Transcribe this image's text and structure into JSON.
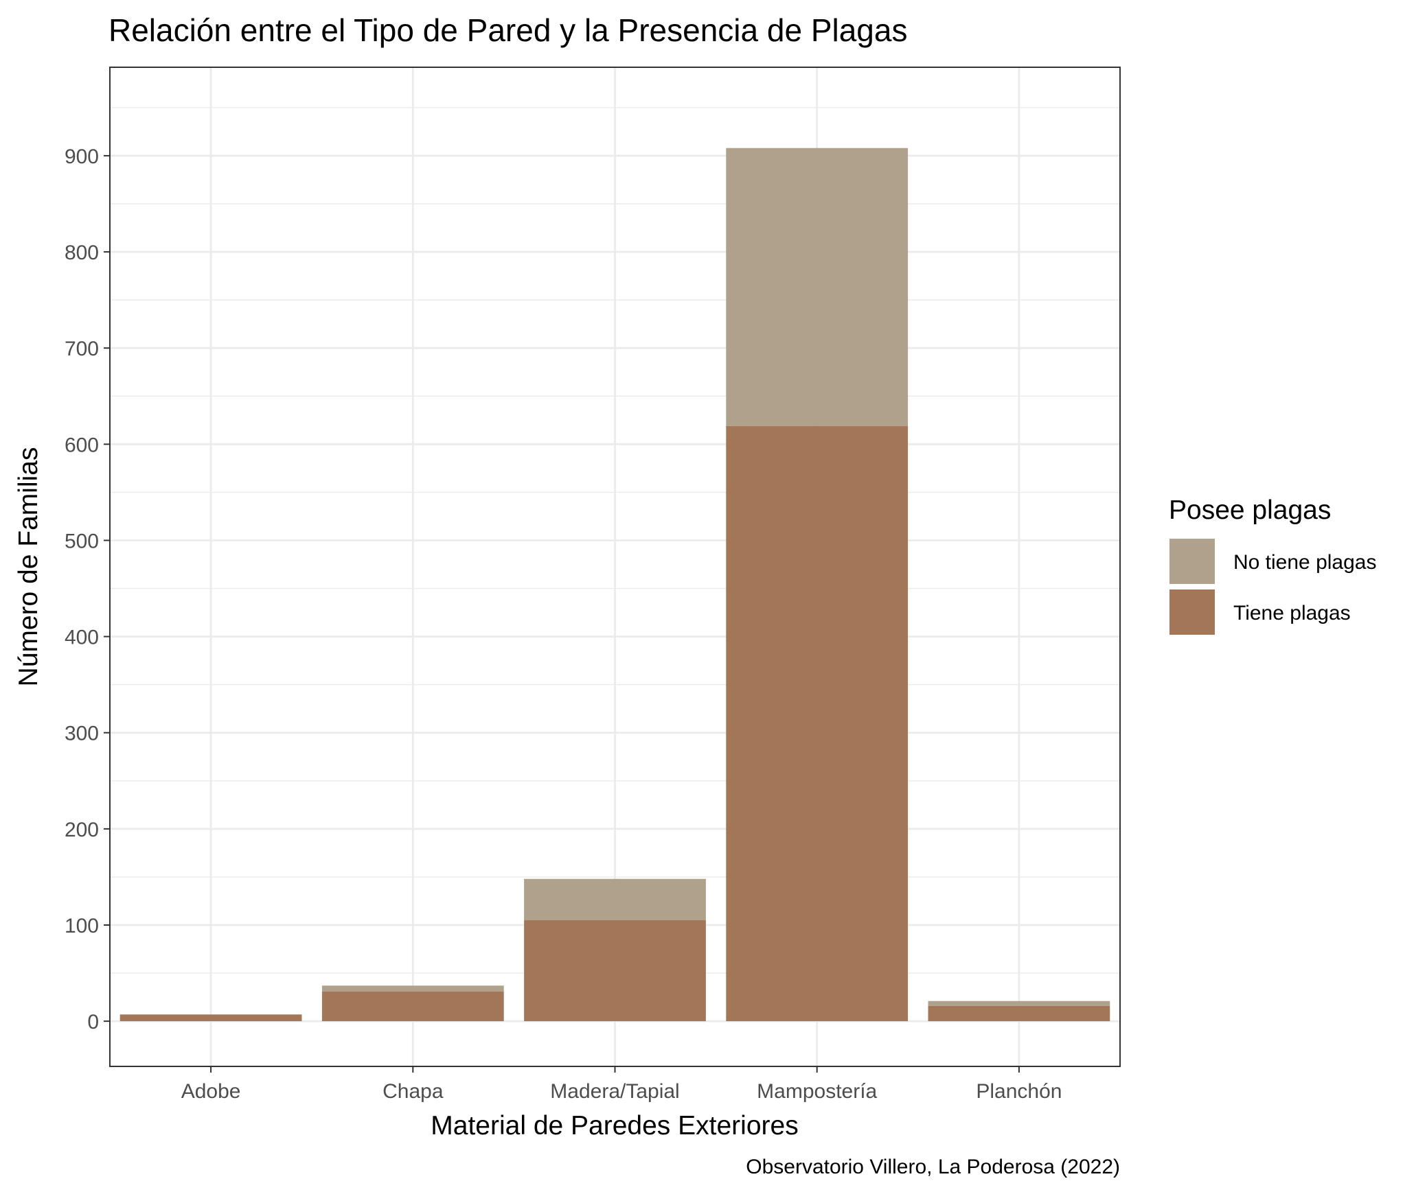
{
  "chart_data": {
    "type": "bar",
    "stacked": true,
    "title": "Relación entre el Tipo de Pared y la Presencia de Plagas",
    "xlabel": "Material de Paredes Exteriores",
    "ylabel": "Número de Familias",
    "caption": "Observatorio Villero, La Poderosa (2022)",
    "categories": [
      "Adobe",
      "Chapa",
      "Madera/Tapial",
      "Mampostería",
      "Planchón"
    ],
    "series": [
      {
        "name": "Tiene plagas",
        "color": "#a47658",
        "values": [
          7,
          31,
          105,
          619,
          16
        ]
      },
      {
        "name": "No tiene plagas",
        "color": "#b0a18c",
        "values": [
          0,
          6,
          43,
          289,
          5
        ]
      }
    ],
    "ylim": [
      -47,
      992
    ],
    "yticks": [
      0,
      100,
      200,
      300,
      400,
      500,
      600,
      700,
      800,
      900
    ],
    "grid": true,
    "legend": {
      "title": "Posee plagas",
      "position": "right",
      "order": [
        "No tiene plagas",
        "Tiene plagas"
      ]
    }
  }
}
